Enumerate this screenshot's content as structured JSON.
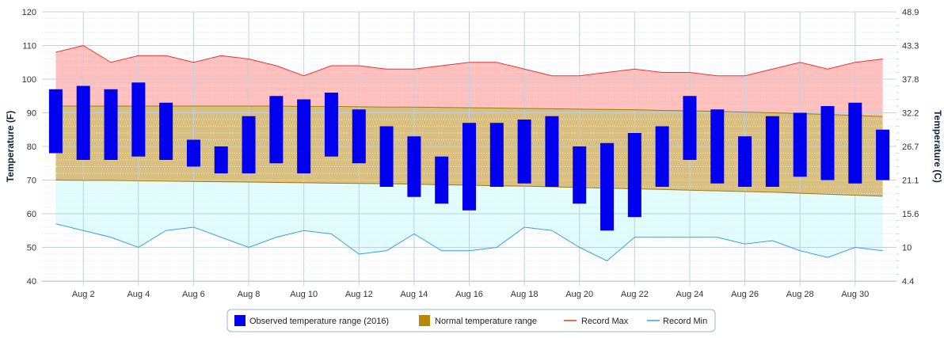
{
  "chart_data": {
    "type": "bar",
    "title": "",
    "xlabel": "",
    "ylabel": "Temperature (F)",
    "ylabel_right": "Temperature (C)",
    "ylim": [
      40,
      120
    ],
    "yticks": [
      40,
      50,
      60,
      70,
      80,
      90,
      100,
      110,
      120
    ],
    "yticks_right": [
      "4.4",
      "10",
      "15.6",
      "21.1",
      "26.7",
      "32.2",
      "37.8",
      "43.3",
      "48.9"
    ],
    "grid": true,
    "legend_position": "bottom-center",
    "days": [
      1,
      2,
      3,
      4,
      5,
      6,
      7,
      8,
      9,
      10,
      11,
      12,
      13,
      14,
      15,
      16,
      17,
      18,
      19,
      20,
      21,
      22,
      23,
      24,
      25,
      26,
      27,
      28,
      29,
      30,
      31
    ],
    "xtick_labels": [
      "Aug 2",
      "Aug 4",
      "Aug 6",
      "Aug 8",
      "Aug 10",
      "Aug 12",
      "Aug 14",
      "Aug 16",
      "Aug 18",
      "Aug 20",
      "Aug 22",
      "Aug 24",
      "Aug 26",
      "Aug 28",
      "Aug 30"
    ],
    "xtick_days": [
      2,
      4,
      6,
      8,
      10,
      12,
      14,
      16,
      18,
      20,
      22,
      24,
      26,
      28,
      30
    ],
    "series": [
      {
        "name": "Observed temperature range (2016)",
        "kind": "range-bar",
        "color": "#0000ee",
        "low": [
          78,
          76,
          76,
          77,
          76,
          74,
          72,
          72,
          75,
          72,
          77,
          75,
          68,
          65,
          63,
          61,
          68,
          69,
          68,
          63,
          55,
          59,
          68,
          76,
          69,
          68,
          68,
          71,
          70,
          69,
          70
        ],
        "high": [
          97,
          98,
          97,
          99,
          93,
          82,
          80,
          89,
          95,
          94,
          96,
          91,
          86,
          83,
          77,
          87,
          87,
          88,
          89,
          80,
          81,
          84,
          86,
          95,
          91,
          83,
          89,
          90,
          92,
          93,
          85
        ]
      },
      {
        "name": "Normal temperature range",
        "kind": "area-range",
        "color": "#b8860b",
        "low": [
          70,
          69.9,
          69.9,
          69.8,
          69.7,
          69.6,
          69.5,
          69.4,
          69.3,
          69.2,
          69.1,
          69,
          68.9,
          68.8,
          68.6,
          68.5,
          68.3,
          68.2,
          68,
          67.8,
          67.6,
          67.4,
          67.2,
          67,
          66.8,
          66.6,
          66.4,
          66.1,
          65.8,
          65.5,
          65.2
        ],
        "high": [
          92,
          92,
          92,
          92,
          92,
          92,
          92,
          92,
          92,
          91.9,
          91.9,
          91.8,
          91.7,
          91.7,
          91.6,
          91.5,
          91.4,
          91.3,
          91.2,
          91.1,
          91,
          90.9,
          90.7,
          90.6,
          90.4,
          90.2,
          90,
          89.8,
          89.5,
          89.2,
          88.9
        ]
      },
      {
        "name": "Record Max",
        "kind": "line",
        "color": "#e83434",
        "values": [
          108,
          110,
          105,
          107,
          107,
          105,
          107,
          106,
          104,
          101,
          104,
          104,
          103,
          103,
          104,
          105,
          105,
          103,
          101,
          101,
          102,
          103,
          102,
          102,
          101,
          101,
          103,
          105,
          103,
          105,
          106
        ]
      },
      {
        "name": "Record Min",
        "kind": "line",
        "color": "#3aa0e0",
        "values": [
          57,
          55,
          53,
          50,
          55,
          56,
          53,
          50,
          53,
          55,
          54,
          48,
          49,
          54,
          49,
          49,
          50,
          56,
          55,
          50,
          46,
          53,
          53,
          53,
          53,
          51,
          52,
          49,
          47,
          50,
          49
        ]
      }
    ],
    "colors": {
      "record_band": "#ffc0bd",
      "low_band": "#e0fcfc",
      "normal_band": "#d9bf80",
      "axis_title": "#0d233a",
      "grid": "#c0d0e0"
    }
  }
}
